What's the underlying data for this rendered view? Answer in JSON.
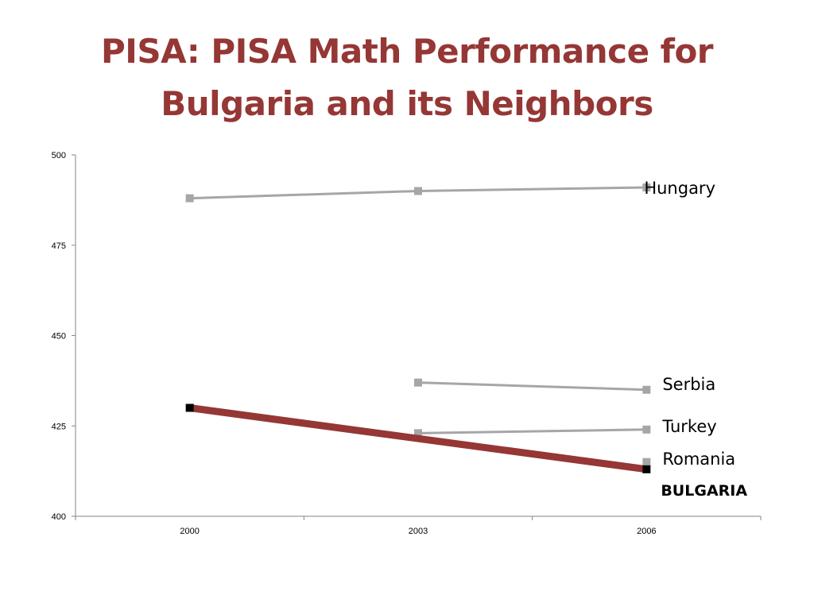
{
  "slide": {
    "title_line1": "PISA: PISA Math Performance for",
    "title_line2": "Bulgaria and its Neighbors"
  },
  "chart_data": {
    "type": "line",
    "x": [
      "2000",
      "2003",
      "2006"
    ],
    "ylim": [
      400,
      500
    ],
    "yticks": [
      400,
      425,
      450,
      475,
      500
    ],
    "grid": false,
    "legend": "end-of-line labels",
    "series": [
      {
        "name": "Hungary",
        "values": [
          488,
          490,
          491
        ],
        "color": "#a6a6a6"
      },
      {
        "name": "Serbia",
        "values": [
          null,
          437,
          435
        ],
        "color": "#a6a6a6"
      },
      {
        "name": "Turkey",
        "values": [
          null,
          423,
          424
        ],
        "color": "#a6a6a6"
      },
      {
        "name": "Romania",
        "values": [
          null,
          null,
          415
        ],
        "color": "#a6a6a6"
      },
      {
        "name": "BULGARIA",
        "values": [
          430,
          null,
          413
        ],
        "color": "#953735",
        "marker_color": "#000000",
        "highlight": true
      }
    ]
  }
}
